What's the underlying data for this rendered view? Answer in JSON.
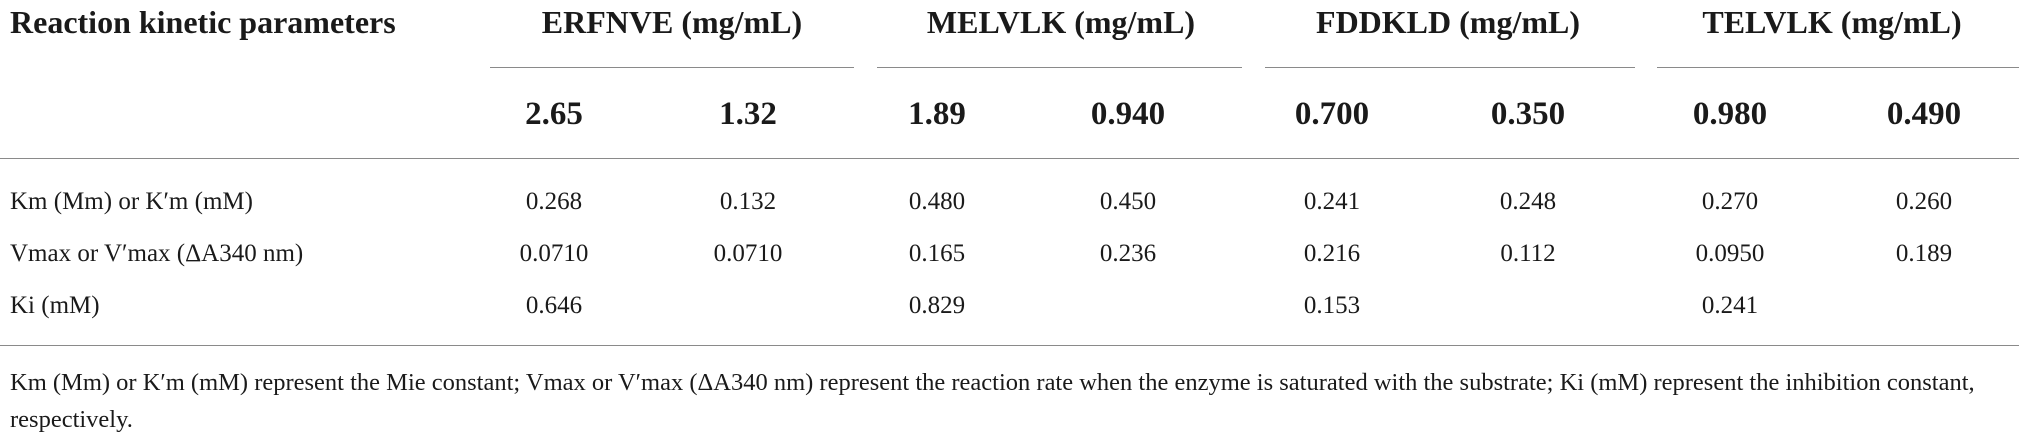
{
  "table": {
    "title": "Reaction kinetic parameters",
    "groups": [
      {
        "label": "ERFNVE (mg/mL)",
        "concentrations": [
          "2.65",
          "1.32"
        ]
      },
      {
        "label": "MELVLK (mg/mL)",
        "concentrations": [
          "1.89",
          "0.940"
        ]
      },
      {
        "label": "FDDKLD (mg/mL)",
        "concentrations": [
          "0.700",
          "0.350"
        ]
      },
      {
        "label": "TELVLK (mg/mL)",
        "concentrations": [
          "0.980",
          "0.490"
        ]
      }
    ],
    "rows": [
      {
        "label": "Km (Mm) or K′m (mM)",
        "values": [
          "0.268",
          "0.132",
          "0.480",
          "0.450",
          "0.241",
          "0.248",
          "0.270",
          "0.260"
        ]
      },
      {
        "label": "Vmax or V′max (ΔA340 nm)",
        "values": [
          "0.0710",
          "0.0710",
          "0.165",
          "0.236",
          "0.216",
          "0.112",
          "0.0950",
          "0.189"
        ]
      },
      {
        "label": "Ki (mM)",
        "values": [
          "0.646",
          "",
          "0.829",
          "",
          "0.153",
          "",
          "0.241",
          ""
        ]
      }
    ],
    "footnote": "Km (Mm) or K′m (mM) represent the Mie constant; Vmax or V′max (ΔA340 nm) represent the reaction rate when the enzyme is saturated with the substrate; Ki (mM) represent the inhibition constant, respectively."
  }
}
